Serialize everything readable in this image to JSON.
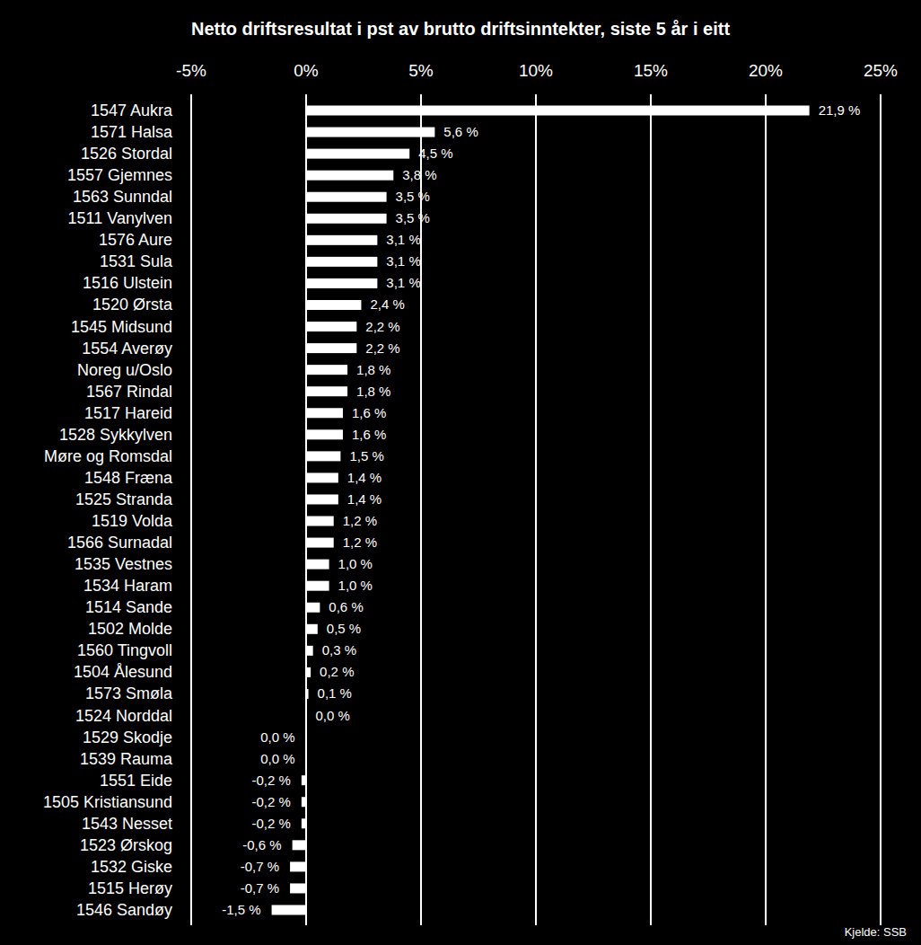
{
  "chart_data": {
    "type": "bar",
    "orientation": "horizontal",
    "title": "Netto driftsresultat i pst av brutto driftsinntekter, siste 5 år i eitt",
    "annotations": [
      "Kjelde: SSB"
    ],
    "categories": [
      "1547 Aukra",
      "1571 Halsa",
      "1526 Stordal",
      "1557 Gjemnes",
      "1563 Sunndal",
      "1511 Vanylven",
      "1576 Aure",
      "1531 Sula",
      "1516 Ulstein",
      "1520 Ørsta",
      "1545 Midsund",
      "1554 Averøy",
      "Noreg u/Oslo",
      "1567 Rindal",
      "1517 Hareid",
      "1528 Sykkylven",
      "Møre og Romsdal",
      "1548 Fræna",
      "1525 Stranda",
      "1519 Volda",
      "1566 Surnadal",
      "1535 Vestnes",
      "1534 Haram",
      "1514 Sande",
      "1502 Molde",
      "1560 Tingvoll",
      "1504 Ålesund",
      "1573 Smøla",
      "1524 Norddal",
      "1529 Skodje",
      "1539 Rauma",
      "1551 Eide",
      "1505 Kristiansund",
      "1543 Nesset",
      "1523 Ørskog",
      "1532 Giske",
      "1515 Herøy",
      "1546 Sandøy"
    ],
    "values": [
      21.9,
      5.6,
      4.5,
      3.8,
      3.5,
      3.5,
      3.1,
      3.1,
      3.1,
      2.4,
      2.2,
      2.2,
      1.8,
      1.8,
      1.6,
      1.6,
      1.5,
      1.4,
      1.4,
      1.2,
      1.2,
      1.0,
      1.0,
      0.6,
      0.5,
      0.3,
      0.2,
      0.1,
      0.02,
      -0.02,
      -0.02,
      -0.2,
      -0.2,
      -0.2,
      -0.6,
      -0.7,
      -0.7,
      -1.5
    ],
    "value_labels": [
      "21,9 %",
      "5,6 %",
      "4,5 %",
      "3,8 %",
      "3,5 %",
      "3,5 %",
      "3,1 %",
      "3,1 %",
      "3,1 %",
      "2,4 %",
      "2,2 %",
      "2,2 %",
      "1,8 %",
      "1,8 %",
      "1,6 %",
      "1,6 %",
      "1,5 %",
      "1,4 %",
      "1,4 %",
      "1,2 %",
      "1,2 %",
      "1,0 %",
      "1,0 %",
      "0,6 %",
      "0,5 %",
      "0,3 %",
      "0,2 %",
      "0,1 %",
      "0,0 %",
      "0,0 %",
      "0,0 %",
      "-0,2 %",
      "-0,2 %",
      "-0,2 %",
      "-0,6 %",
      "-0,7 %",
      "-0,7 %",
      "-1,5 %"
    ],
    "color": "#ffffff",
    "xlim": [
      -5,
      25
    ],
    "xticks": [
      {
        "value": -5,
        "label": "-5%"
      },
      {
        "value": 0,
        "label": "0%"
      },
      {
        "value": 5,
        "label": "5%"
      },
      {
        "value": 10,
        "label": "10%"
      },
      {
        "value": 15,
        "label": "15%"
      },
      {
        "value": 20,
        "label": "20%"
      },
      {
        "value": 25,
        "label": "25%"
      }
    ],
    "grid": true,
    "data_labels": true
  }
}
